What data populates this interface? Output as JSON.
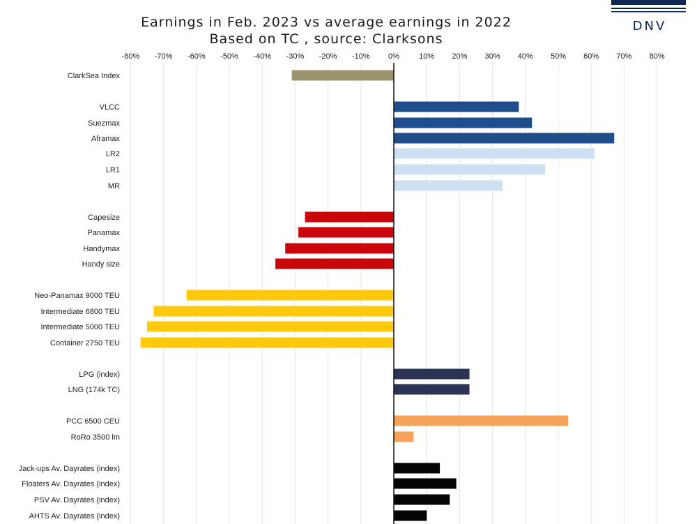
{
  "brand": {
    "name": "DNV",
    "color": "#0f2552"
  },
  "chart_data": {
    "type": "bar",
    "orientation": "horizontal",
    "title": "Earnings in Feb. 2023 vs average earnings in 2022",
    "subtitle": "Based on TC , source: Clarksons",
    "xlim": [
      -80,
      80
    ],
    "x_ticks": [
      "-80%",
      "-70%",
      "-60%",
      "-50%",
      "-40%",
      "-30%",
      "-20%",
      "-10%",
      "0%",
      "10%",
      "20%",
      "30%",
      "40%",
      "50%",
      "60%",
      "70%",
      "80%"
    ],
    "grid": true,
    "categories": [
      {
        "label": "ClarkSea Index",
        "value": -31,
        "color": "#9c9470"
      },
      {
        "label": "VLCC",
        "value": 38,
        "color": "#1f4e8c"
      },
      {
        "label": "Suezmax",
        "value": 42,
        "color": "#1f4e8c"
      },
      {
        "label": "Aframax",
        "value": 67,
        "color": "#1f4e8c"
      },
      {
        "label": "LR2",
        "value": 61,
        "color": "#cfdff2"
      },
      {
        "label": "LR1",
        "value": 46,
        "color": "#cfdff2"
      },
      {
        "label": "MR",
        "value": 33,
        "color": "#cfdff2"
      },
      {
        "label": "Capesize",
        "value": -27,
        "color": "#c8060c"
      },
      {
        "label": "Panamax",
        "value": -29,
        "color": "#c8060c"
      },
      {
        "label": "Handymax",
        "value": -33,
        "color": "#c8060c"
      },
      {
        "label": "Handy size",
        "value": -36,
        "color": "#c8060c"
      },
      {
        "label": "Neo-Panamax 9000 TEU",
        "value": -63,
        "color": "#ffc90e"
      },
      {
        "label": "Intermediate 6800 TEU",
        "value": -73,
        "color": "#ffc90e"
      },
      {
        "label": "Intermediate 5000 TEU",
        "value": -75,
        "color": "#ffc90e"
      },
      {
        "label": "Container 2750 TEU",
        "value": -77,
        "color": "#ffc90e"
      },
      {
        "label": "LPG (index)",
        "value": 23,
        "color": "#2b3452"
      },
      {
        "label": "LNG (174k TC)",
        "value": 23,
        "color": "#2b3452"
      },
      {
        "label": "PCC 6500 CEU",
        "value": 53,
        "color": "#f7a25a"
      },
      {
        "label": "RoRo 3500 lm",
        "value": 6,
        "color": "#f7a25a"
      },
      {
        "label": "Jack-ups Av. Dayrates (index)",
        "value": 14,
        "color": "#050505"
      },
      {
        "label": "Floaters Av. Dayrates (index)",
        "value": 19,
        "color": "#050505"
      },
      {
        "label": "PSV Av. Dayrates  (index)",
        "value": 17,
        "color": "#050505"
      },
      {
        "label": "AHTS Av. Dayrates  (index)",
        "value": 10,
        "color": "#050505"
      }
    ]
  }
}
